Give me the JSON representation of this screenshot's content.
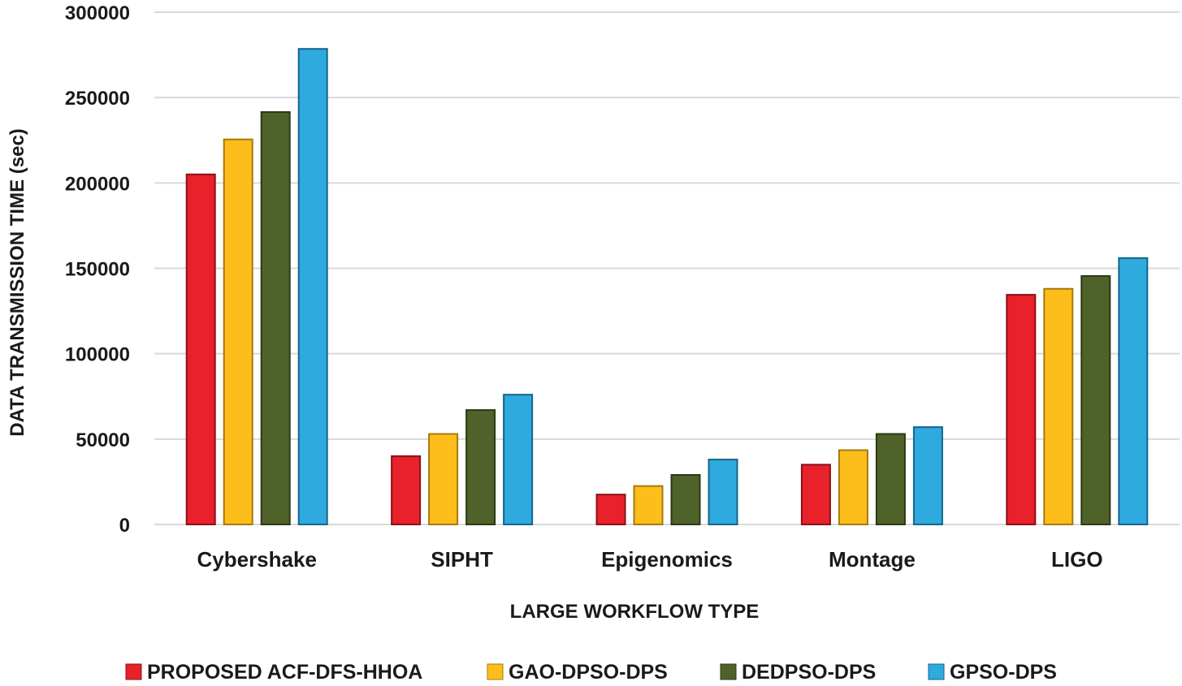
{
  "chart_data": {
    "type": "bar",
    "title": "",
    "xlabel": "LARGE WORKFLOW TYPE",
    "ylabel": "DATA TRANSMISSION TIME  (sec)",
    "ylim": [
      0,
      300000
    ],
    "yticks": [
      0,
      50000,
      100000,
      150000,
      200000,
      250000,
      300000
    ],
    "ytick_labels": [
      "0",
      "50000",
      "100000",
      "150000",
      "200000",
      "250000",
      "300000"
    ],
    "grid": true,
    "legend_position": "bottom",
    "categories": [
      "Cybershake",
      "SIPHT",
      "Epigenomics",
      "Montage",
      "LIGO"
    ],
    "series": [
      {
        "name": "PROPOSED ACF-DFS-HHOA",
        "color": "#e8212a",
        "edge": "#8a1217",
        "values": [
          205000,
          40000,
          17500,
          35000,
          134500
        ]
      },
      {
        "name": "GAO-DPSO-DPS",
        "color": "#fdbd1b",
        "edge": "#a67a0a",
        "values": [
          225500,
          53000,
          22500,
          43500,
          138000
        ]
      },
      {
        "name": "DEDPSO-DPS",
        "color": "#4f6229",
        "edge": "#2c3816",
        "values": [
          241500,
          67000,
          29000,
          53000,
          145500
        ]
      },
      {
        "name": "GPSO-DPS",
        "color": "#2eaadf",
        "edge": "#13658a",
        "values": [
          278500,
          76000,
          38000,
          57000,
          156000
        ]
      }
    ]
  }
}
